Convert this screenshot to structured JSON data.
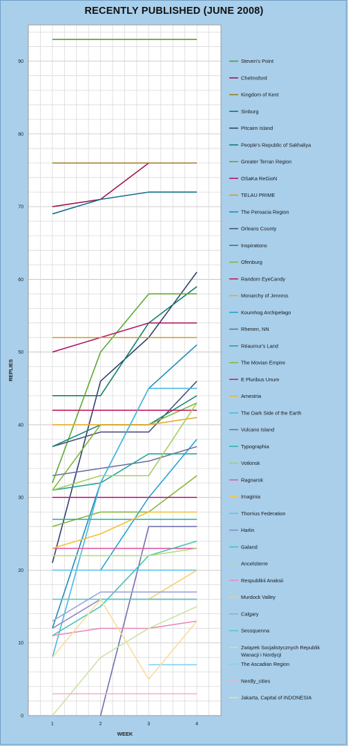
{
  "chart_data": {
    "type": "line",
    "title": "RECENTLY PUBLISHED (JUNE 2008)",
    "xlabel": "WEEK",
    "ylabel": "REPLIES",
    "x": [
      1,
      2,
      3,
      4
    ],
    "xlim": [
      0.5,
      4.5
    ],
    "ylim": [
      0,
      95
    ],
    "yticks": [
      0,
      10,
      20,
      30,
      40,
      50,
      60,
      70,
      80,
      90
    ],
    "grid": true,
    "legend_position": "right",
    "series": [
      {
        "name": "Steven's Point",
        "color": "#4aa02c",
        "values": [
          93,
          93,
          93,
          93
        ]
      },
      {
        "name": "Chelmsford",
        "color": "#a0124e",
        "values": [
          70,
          71,
          76,
          null
        ]
      },
      {
        "name": "Kingdom of Kent",
        "color": "#a07a1e",
        "values": [
          76,
          76,
          76,
          76
        ]
      },
      {
        "name": "Sinburg",
        "color": "#0f6f8f",
        "values": [
          69,
          71,
          72,
          72
        ]
      },
      {
        "name": "Pitcairn Island",
        "color": "#2e3f6e",
        "values": [
          21,
          46,
          52,
          61
        ]
      },
      {
        "name": "People's Republic of Sakhaliya",
        "color": "#0f7d6a",
        "values": [
          44,
          44,
          54,
          59
        ]
      },
      {
        "name": "Greater Terran Region",
        "color": "#5ca832",
        "values": [
          32,
          50,
          58,
          58
        ]
      },
      {
        "name": "OSaKa ReGioN",
        "color": "#b01565",
        "values": [
          50,
          52,
          54,
          54
        ]
      },
      {
        "name": "TELAU PRIME",
        "color": "#d59a16",
        "values": [
          52,
          52,
          52,
          52
        ]
      },
      {
        "name": "The Peroacia Region",
        "color": "#1a8cb8",
        "values": [
          12,
          32,
          45,
          51
        ]
      },
      {
        "name": "Orleans County",
        "color": "#4a4f7e",
        "values": [
          37,
          39,
          39,
          46
        ]
      },
      {
        "name": "Inspirations",
        "color": "#14887e",
        "values": [
          37,
          40,
          40,
          44
        ]
      },
      {
        "name": "Ofenburg",
        "color": "#7fb63a",
        "values": [
          31,
          40,
          40,
          43
        ]
      },
      {
        "name": "Random EyeCandy",
        "color": "#c4175b",
        "values": [
          42,
          42,
          42,
          42
        ]
      },
      {
        "name": "Monarchy of Jenress",
        "color": "#e6a92a",
        "values": [
          40,
          40,
          40,
          41
        ]
      },
      {
        "name": "Koumhog Archipelago",
        "color": "#23a3d4",
        "values": [
          null,
          20,
          30,
          38
        ]
      },
      {
        "name": "Rhenen, NN",
        "color": "#6a6fa0",
        "values": [
          33,
          34,
          35,
          37
        ]
      },
      {
        "name": "Réaumur's Land",
        "color": "#23a496",
        "values": [
          31,
          32,
          36,
          36
        ]
      },
      {
        "name": "The Movian Empire",
        "color": "#8ab53c",
        "values": [
          26,
          28,
          28,
          33
        ]
      },
      {
        "name": "E Pluribus Unum",
        "color": "#c8168a",
        "values": [
          30,
          30,
          30,
          30
        ]
      },
      {
        "name": "Amestria",
        "color": "#f0b62c",
        "values": [
          23,
          25,
          28,
          28
        ]
      },
      {
        "name": "The Dark Side of the Earth",
        "color": "#46b8e2",
        "values": [
          8,
          32,
          45,
          45
        ]
      },
      {
        "name": "Vulcano Island",
        "color": "#6f6fb0",
        "values": [
          null,
          0,
          26,
          26
        ]
      },
      {
        "name": "Typographia",
        "color": "#2ab7a8",
        "values": [
          27,
          27,
          27,
          27
        ]
      },
      {
        "name": "Votkinsk",
        "color": "#a3cf5c",
        "values": [
          31,
          33,
          33,
          43
        ]
      },
      {
        "name": "Ragnarok",
        "color": "#e05aa0",
        "values": [
          23,
          23,
          23,
          23
        ]
      },
      {
        "name": "Imaginia",
        "color": "#f5c542",
        "values": [
          23,
          25,
          28,
          28
        ]
      },
      {
        "name": "Thorrius Federation",
        "color": "#5ec3ea",
        "values": [
          20,
          20,
          20,
          20
        ]
      },
      {
        "name": "Harlin",
        "color": "#8a8ac6",
        "values": [
          12,
          16,
          16,
          16
        ]
      },
      {
        "name": "Galand",
        "color": "#45c3b5",
        "values": [
          11,
          15,
          22,
          24
        ]
      },
      {
        "name": "Ancelstierre",
        "color": "#b9dc7a",
        "values": [
          22,
          22,
          22,
          23
        ]
      },
      {
        "name": "Respublikii Anaksii",
        "color": "#ea8ab8",
        "values": [
          11,
          12,
          12,
          13
        ]
      },
      {
        "name": "Murdock Valley",
        "color": "#f7cf66",
        "values": [
          null,
          null,
          16,
          20
        ]
      },
      {
        "name": "Calgary",
        "color": "#9fa3d8",
        "values": [
          13,
          17,
          17,
          17
        ]
      },
      {
        "name": "Sessquenna",
        "color": "#56c9bd",
        "values": [
          16,
          16,
          16,
          16
        ]
      },
      {
        "name": "Związek Socjalistycznych Republik Wanacji i Nordycji",
        "color": "#c9e4a0",
        "values": [
          0,
          8,
          12,
          15
        ]
      },
      {
        "name": "The Ascadian Region",
        "color": "#7fd2f0",
        "values": [
          null,
          null,
          7,
          7
        ]
      },
      {
        "name": "Nerdly_cities",
        "color": "#f2b2d0",
        "values": [
          3,
          3,
          3,
          3
        ]
      },
      {
        "name": "Jakarta, Capital of INDONESIA",
        "color": "#f9dc9a",
        "values": [
          8,
          16,
          5,
          13
        ]
      }
    ]
  }
}
